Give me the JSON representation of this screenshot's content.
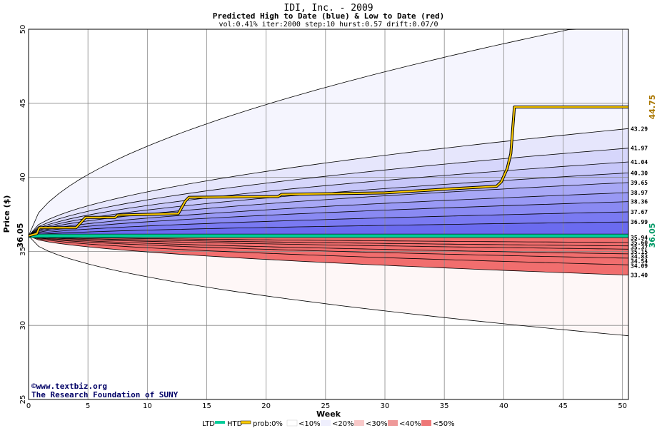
{
  "chart_data": {
    "type": "area",
    "title": "IDI, Inc. - 2009",
    "subtitle": "Predicted High to Date (blue) &  Low to Date (red)",
    "params": "vol:0.41% iter:2000 step:10 hurst:0.57 drift:0.07/0",
    "xlabel": "Week",
    "ylabel": "Price ($)",
    "xlim": [
      0,
      50.5
    ],
    "ylim": [
      25,
      50
    ],
    "xticks": [
      "0",
      "5",
      "10",
      "15",
      "20",
      "25",
      "30",
      "35",
      "40",
      "45",
      "50"
    ],
    "yticks": [
      "25",
      "30",
      "35",
      "40",
      "45",
      "50"
    ],
    "grid": true,
    "start_price": "36.05",
    "start_price_value": 36.05,
    "current_high": "44.75",
    "current_high_value": 44.75,
    "current_low": "36.05",
    "high_quantiles": [
      "43.29",
      "41.97",
      "41.04",
      "40.30",
      "39.65",
      "38.97",
      "38.36",
      "37.67",
      "36.99"
    ],
    "high_quantile_values": [
      43.29,
      41.97,
      41.04,
      40.3,
      39.65,
      38.97,
      38.36,
      37.67,
      36.99
    ],
    "high_envelope_end": 50.8,
    "low_quantiles": [
      "35.94",
      "35.60",
      "35.37",
      "35.15",
      "34.83",
      "34.54",
      "34.09",
      "33.40"
    ],
    "low_quantile_values": [
      35.94,
      35.6,
      35.37,
      35.15,
      34.83,
      34.54,
      34.09,
      33.4
    ],
    "low_envelope_end": 29.3,
    "htd_path": [
      [
        0,
        36.05
      ],
      [
        0.7,
        36.2
      ],
      [
        0.9,
        36.6
      ],
      [
        4,
        36.6
      ],
      [
        4.4,
        36.95
      ],
      [
        4.8,
        37.3
      ],
      [
        7.3,
        37.3
      ],
      [
        7.5,
        37.45
      ],
      [
        12.6,
        37.55
      ],
      [
        13.2,
        38.4
      ],
      [
        13.5,
        38.65
      ],
      [
        21,
        38.7
      ],
      [
        21.3,
        38.85
      ],
      [
        30,
        38.95
      ],
      [
        35,
        39.2
      ],
      [
        39.4,
        39.4
      ],
      [
        39.8,
        39.7
      ],
      [
        40.3,
        40.6
      ],
      [
        40.6,
        41.6
      ],
      [
        40.9,
        44.75
      ],
      [
        50.5,
        44.75
      ]
    ],
    "ltd_value": 36.05,
    "colors": {
      "htd_line": "#ffcc00",
      "ltd_line": "#00cc99",
      "blue_band": "#5555ee",
      "red_band": "#ee5555"
    },
    "legend": {
      "ltd": "LTD",
      "htd": "HTD",
      "prob_label": "prob:0%",
      "items": [
        "<10%",
        "<20%",
        "<30%",
        "<40%",
        "<50%"
      ],
      "placement": "bottom"
    },
    "credit": {
      "line1": "©www.textbiz.org",
      "line2": "The Research Foundation of SUNY"
    }
  }
}
